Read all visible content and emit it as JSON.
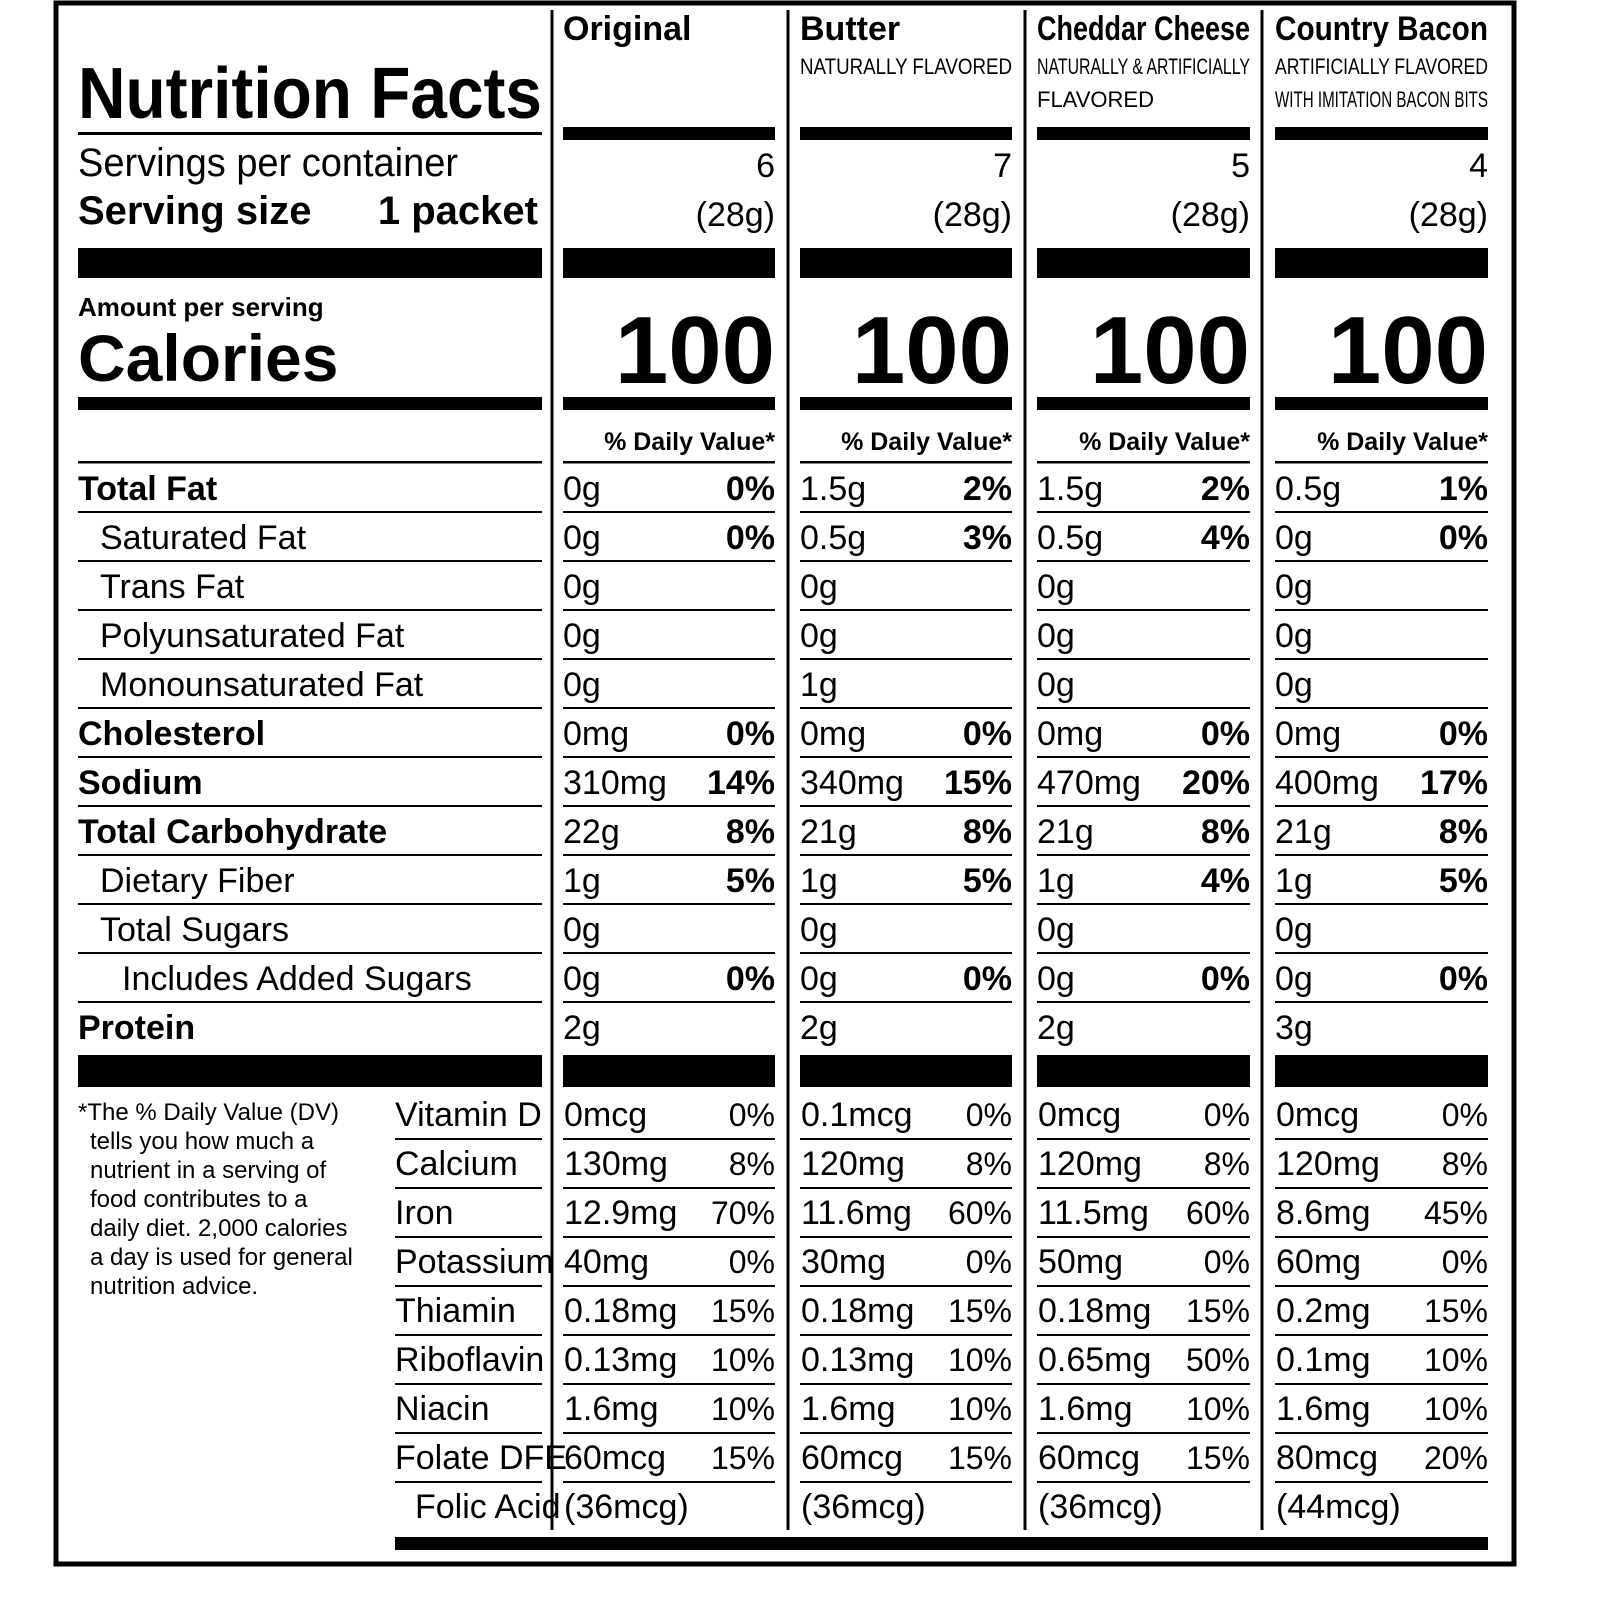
{
  "title": "Nutrition Facts",
  "servings_label": "Servings per container",
  "serving_size_label": "Serving size",
  "serving_size": "1 packet",
  "amount_label": "Amount per serving",
  "calories_label": "Calories",
  "dv_header": "% Daily Value*",
  "footnote": [
    "*The % Daily Value (DV)",
    "tells you how much a",
    "nutrient in a serving of",
    "food contributes to a",
    "daily diet. 2,000 calories",
    "a day is used for general",
    "nutrition advice."
  ],
  "nutrients": [
    {
      "label": "Total Fat",
      "style": "bold"
    },
    {
      "label": "Saturated Fat",
      "style": "sub"
    },
    {
      "label": "Trans Fat",
      "style": "sub"
    },
    {
      "label": "Polyunsaturated Fat",
      "style": "sub"
    },
    {
      "label": "Monounsaturated Fat",
      "style": "sub"
    },
    {
      "label": "Cholesterol",
      "style": "bold"
    },
    {
      "label": "Sodium",
      "style": "bold"
    },
    {
      "label": "Total Carbohydrate",
      "style": "bold"
    },
    {
      "label": "Dietary Fiber",
      "style": "sub"
    },
    {
      "label": "Total Sugars",
      "style": "sub"
    },
    {
      "label": "Includes Added Sugars",
      "style": "subsub"
    },
    {
      "label": "Protein",
      "style": "bold"
    }
  ],
  "vitamins": [
    {
      "label": "Vitamin D",
      "style": "sub"
    },
    {
      "label": "Calcium",
      "style": "sub"
    },
    {
      "label": "Iron",
      "style": "sub"
    },
    {
      "label": "Potassium",
      "style": "sub"
    },
    {
      "label": "Thiamin",
      "style": "sub"
    },
    {
      "label": "Riboflavin",
      "style": "sub"
    },
    {
      "label": "Niacin",
      "style": "sub"
    },
    {
      "label": "Folate DFE",
      "style": "sub"
    },
    {
      "label": "Folic Acid",
      "style": "subsub"
    }
  ],
  "columns": [
    {
      "name": "Original",
      "servings": 6,
      "serving_weight": "(28g)",
      "calories": 100,
      "nutrients": [
        [
          "0g",
          "0%"
        ],
        [
          "0g",
          "0%"
        ],
        [
          "0g",
          null
        ],
        [
          "0g",
          null
        ],
        [
          "0g",
          null
        ],
        [
          "0mg",
          "0%"
        ],
        [
          "310mg",
          "14%"
        ],
        [
          "22g",
          "8%"
        ],
        [
          "1g",
          "5%"
        ],
        [
          "0g",
          null
        ],
        [
          "0g",
          "0%"
        ],
        [
          "2g",
          null
        ]
      ],
      "vitamins": [
        [
          "0mcg",
          "0%"
        ],
        [
          "130mg",
          "8%"
        ],
        [
          "12.9mg",
          "70%"
        ],
        [
          "40mg",
          "0%"
        ],
        [
          "0.18mg",
          "15%"
        ],
        [
          "0.13mg",
          "10%"
        ],
        [
          "1.6mg",
          "10%"
        ],
        [
          "60mcg",
          "15%"
        ],
        [
          "(36mcg)",
          null
        ]
      ]
    },
    {
      "name": "Butter",
      "subtitle": [
        "NATURALLY FLAVORED"
      ],
      "servings": 7,
      "serving_weight": "(28g)",
      "calories": 100,
      "nutrients": [
        [
          "1.5g",
          "2%"
        ],
        [
          "0.5g",
          "3%"
        ],
        [
          "0g",
          null
        ],
        [
          "0g",
          null
        ],
        [
          "1g",
          null
        ],
        [
          "0mg",
          "0%"
        ],
        [
          "340mg",
          "15%"
        ],
        [
          "21g",
          "8%"
        ],
        [
          "1g",
          "5%"
        ],
        [
          "0g",
          null
        ],
        [
          "0g",
          "0%"
        ],
        [
          "2g",
          null
        ]
      ],
      "vitamins": [
        [
          "0.1mcg",
          "0%"
        ],
        [
          "120mg",
          "8%"
        ],
        [
          "11.6mg",
          "60%"
        ],
        [
          "30mg",
          "0%"
        ],
        [
          "0.18mg",
          "15%"
        ],
        [
          "0.13mg",
          "10%"
        ],
        [
          "1.6mg",
          "10%"
        ],
        [
          "60mcg",
          "15%"
        ],
        [
          "(36mcg)",
          null
        ]
      ]
    },
    {
      "name": "Cheddar Cheese",
      "subtitle": [
        "NATURALLY & ARTIFICIALLY",
        "FLAVORED"
      ],
      "servings": 5,
      "serving_weight": "(28g)",
      "calories": 100,
      "nutrients": [
        [
          "1.5g",
          "2%"
        ],
        [
          "0.5g",
          "4%"
        ],
        [
          "0g",
          null
        ],
        [
          "0g",
          null
        ],
        [
          "0g",
          null
        ],
        [
          "0mg",
          "0%"
        ],
        [
          "470mg",
          "20%"
        ],
        [
          "21g",
          "8%"
        ],
        [
          "1g",
          "4%"
        ],
        [
          "0g",
          null
        ],
        [
          "0g",
          "0%"
        ],
        [
          "2g",
          null
        ]
      ],
      "vitamins": [
        [
          "0mcg",
          "0%"
        ],
        [
          "120mg",
          "8%"
        ],
        [
          "11.5mg",
          "60%"
        ],
        [
          "50mg",
          "0%"
        ],
        [
          "0.18mg",
          "15%"
        ],
        [
          "0.65mg",
          "50%"
        ],
        [
          "1.6mg",
          "10%"
        ],
        [
          "60mcg",
          "15%"
        ],
        [
          "(36mcg)",
          null
        ]
      ]
    },
    {
      "name": "Country Bacon",
      "subtitle": [
        "ARTIFICIALLY FLAVORED",
        "WITH IMITATION BACON BITS"
      ],
      "servings": 4,
      "serving_weight": "(28g)",
      "calories": 100,
      "nutrients": [
        [
          "0.5g",
          "1%"
        ],
        [
          "0g",
          "0%"
        ],
        [
          "0g",
          null
        ],
        [
          "0g",
          null
        ],
        [
          "0g",
          null
        ],
        [
          "0mg",
          "0%"
        ],
        [
          "400mg",
          "17%"
        ],
        [
          "21g",
          "8%"
        ],
        [
          "1g",
          "5%"
        ],
        [
          "0g",
          null
        ],
        [
          "0g",
          "0%"
        ],
        [
          "3g",
          null
        ]
      ],
      "vitamins": [
        [
          "0mcg",
          "0%"
        ],
        [
          "120mg",
          "8%"
        ],
        [
          "8.6mg",
          "45%"
        ],
        [
          "60mg",
          "0%"
        ],
        [
          "0.2mg",
          "15%"
        ],
        [
          "0.1mg",
          "10%"
        ],
        [
          "1.6mg",
          "10%"
        ],
        [
          "80mcg",
          "20%"
        ],
        [
          "(44mcg)",
          null
        ]
      ]
    }
  ]
}
